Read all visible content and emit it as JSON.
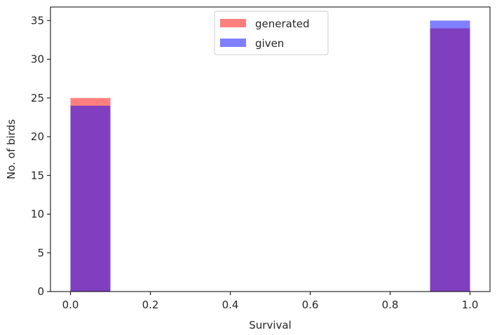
{
  "chart_data": {
    "type": "bar",
    "title": "",
    "xlabel": "Survival",
    "ylabel": "No. of birds",
    "xlim": [
      -0.05,
      1.05
    ],
    "ylim": [
      0,
      36.75
    ],
    "xticks": [
      0.0,
      0.2,
      0.4,
      0.6,
      0.8,
      1.0
    ],
    "xtick_labels": [
      "0.0",
      "0.2",
      "0.4",
      "0.6",
      "0.8",
      "1.0"
    ],
    "yticks": [
      0,
      5,
      10,
      15,
      20,
      25,
      30,
      35
    ],
    "ytick_labels": [
      "0",
      "5",
      "10",
      "15",
      "20",
      "25",
      "30",
      "35"
    ],
    "bins": [
      [
        0.0,
        0.1
      ],
      [
        0.9,
        1.0
      ]
    ],
    "series": [
      {
        "name": "generated",
        "color": "#ff0000",
        "opacity": 0.5,
        "values": [
          25,
          34
        ]
      },
      {
        "name": "given",
        "color": "#0000ff",
        "opacity": 0.5,
        "values": [
          24,
          35
        ]
      }
    ],
    "legend_position": "top-center",
    "grid": false
  }
}
